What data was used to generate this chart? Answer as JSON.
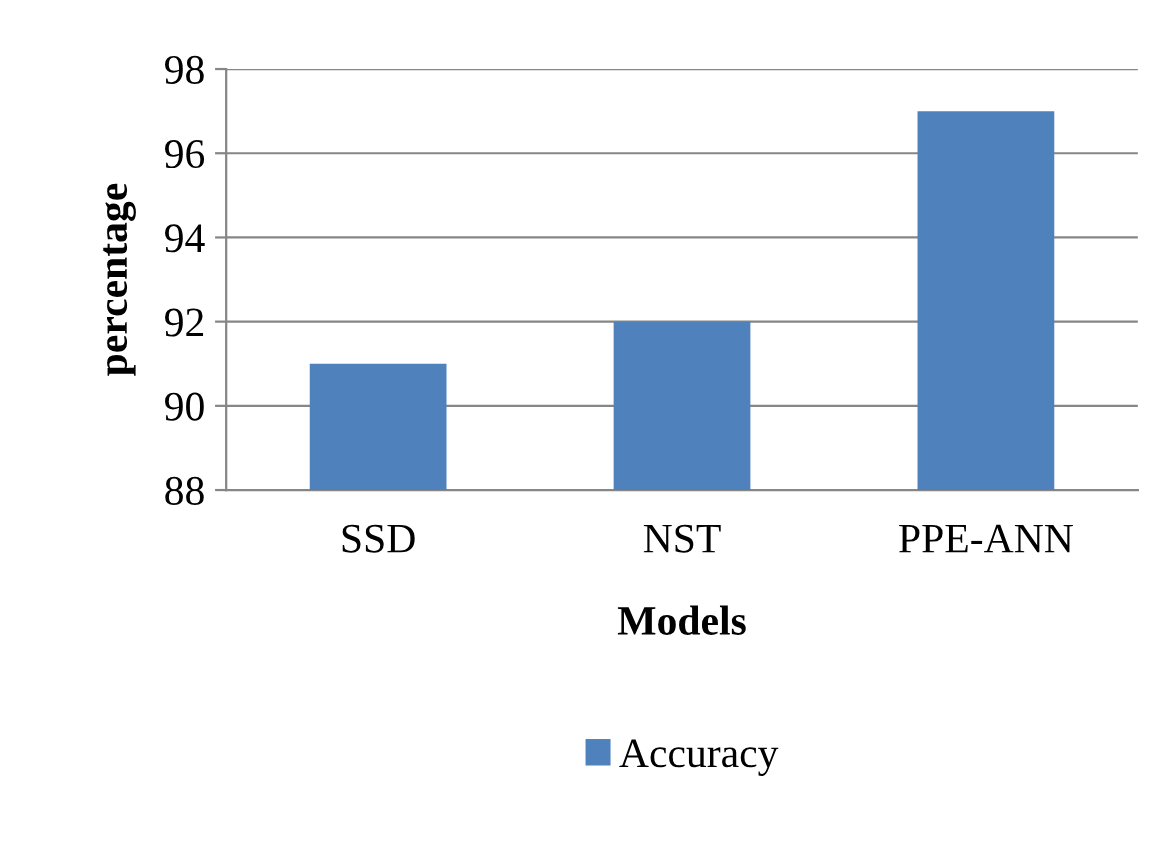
{
  "chart_data": {
    "type": "bar",
    "categories": [
      "SSD",
      "NST",
      "PPE-ANN"
    ],
    "series": [
      {
        "name": "Accuracy",
        "color": "#4f81bd",
        "values": [
          91,
          92,
          97
        ]
      }
    ],
    "xlabel": "Models",
    "ylabel": "percentage",
    "ylim": [
      88,
      98
    ],
    "yticks": [
      88,
      90,
      92,
      94,
      96,
      98
    ],
    "grid": "y",
    "legend": "bottom"
  }
}
